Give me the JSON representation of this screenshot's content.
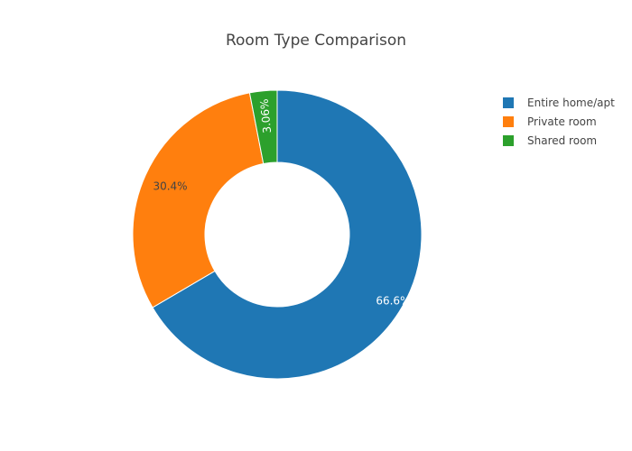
{
  "chart_data": {
    "type": "pie",
    "title": "Room Type Comparison",
    "hole": 0.5,
    "sort": "descending",
    "direction": "clockwise",
    "labels": [
      "Entire home/apt",
      "Private room",
      "Shared room"
    ],
    "values": [
      66.6,
      30.4,
      3.06
    ],
    "percent_labels": [
      "66.6%",
      "30.4%",
      "3.06%"
    ],
    "colors": [
      "#1f77b4",
      "#ff7f0e",
      "#2ca02c"
    ],
    "label_colors": [
      "#ffffff",
      "#444444",
      "#ffffff"
    ],
    "legend": {
      "placement": "top-right",
      "entries": [
        "Entire home/apt",
        "Private room",
        "Shared room"
      ]
    }
  }
}
